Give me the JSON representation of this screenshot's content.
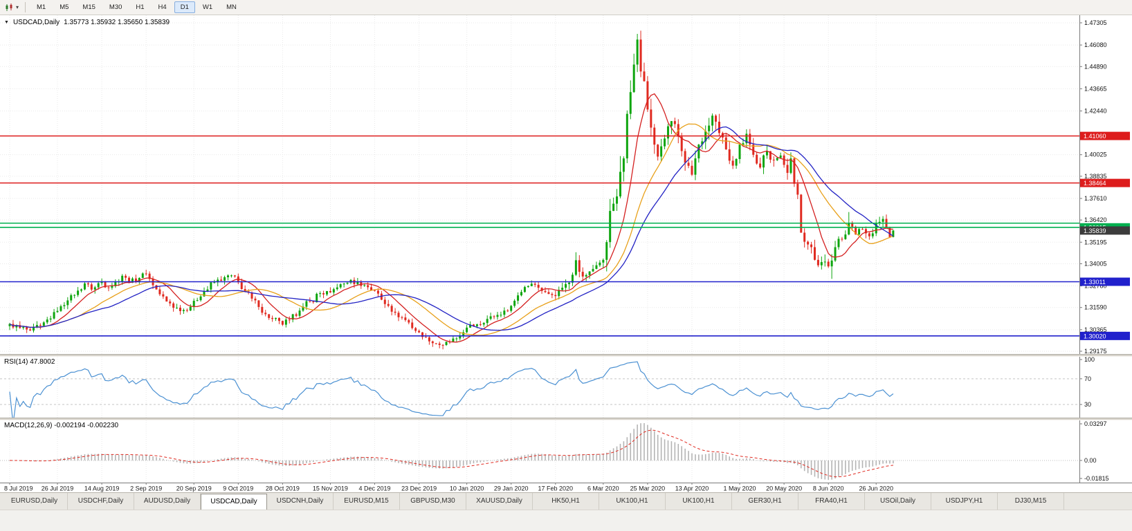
{
  "toolbar": {
    "dropdown_glyph": "▾",
    "timeframes": [
      {
        "label": "M1",
        "active": false
      },
      {
        "label": "M5",
        "active": false
      },
      {
        "label": "M15",
        "active": false
      },
      {
        "label": "M30",
        "active": false
      },
      {
        "label": "H1",
        "active": false
      },
      {
        "label": "H4",
        "active": false
      },
      {
        "label": "D1",
        "active": true
      },
      {
        "label": "W1",
        "active": false
      },
      {
        "label": "MN",
        "active": false
      }
    ]
  },
  "chart": {
    "title": "USDCAD,Daily",
    "ohlc": "1.35773 1.35932 1.35650 1.35839",
    "collapse_glyph": "▼"
  },
  "colors": {
    "candle_up": "#0ea50e",
    "candle_down": "#e02a20",
    "rsi_line": "#4a90d2",
    "macd_histogram": "#b4b4b4",
    "macd_signal": "#e02a20",
    "grid": "#e9e9e9",
    "axis_text": "#111111"
  },
  "chart_data": {
    "type": "candlestick",
    "symbol": "USDCAD",
    "period": "Daily",
    "y_range": [
      1.29175,
      1.47305
    ],
    "y_axis_labels": [
      "1.47305",
      "1.46080",
      "1.44890",
      "1.43665",
      "1.42440",
      "1.40025",
      "1.38835",
      "1.37610",
      "1.36420",
      "1.35195",
      "1.34005",
      "1.32780",
      "1.31590",
      "1.30365",
      "1.29175"
    ],
    "x_labels": [
      "8 Jul 2019",
      "26 Jul 2019",
      "14 Aug 2019",
      "2 Sep 2019",
      "20 Sep 2019",
      "9 Oct 2019",
      "28 Oct 2019",
      "15 Nov 2019",
      "4 Dec 2019",
      "23 Dec 2019",
      "10 Jan 2020",
      "29 Jan 2020",
      "17 Feb 2020",
      "6 Mar 2020",
      "25 Mar 2020",
      "13 Apr 2020",
      "1 May 2020",
      "20 May 2020",
      "8 Jun 2020",
      "26 Jun 2020"
    ],
    "x_label_indices": [
      0,
      14,
      27,
      40,
      54,
      67,
      80,
      94,
      107,
      120,
      134,
      147,
      160,
      174,
      187,
      200,
      214,
      227,
      240,
      254
    ],
    "candle_count": 260,
    "close_anchors": [
      [
        0,
        1.3068
      ],
      [
        3,
        1.3046
      ],
      [
        6,
        1.3032
      ],
      [
        9,
        1.3058
      ],
      [
        12,
        1.3098
      ],
      [
        14,
        1.314
      ],
      [
        17,
        1.3198
      ],
      [
        20,
        1.3252
      ],
      [
        22,
        1.3292
      ],
      [
        24,
        1.3258
      ],
      [
        27,
        1.3302
      ],
      [
        29,
        1.3268
      ],
      [
        31,
        1.33
      ],
      [
        33,
        1.3334
      ],
      [
        35,
        1.3296
      ],
      [
        38,
        1.3322
      ],
      [
        40,
        1.3346
      ],
      [
        42,
        1.3282
      ],
      [
        44,
        1.3232
      ],
      [
        46,
        1.3192
      ],
      [
        49,
        1.3158
      ],
      [
        52,
        1.3142
      ],
      [
        54,
        1.3196
      ],
      [
        57,
        1.3248
      ],
      [
        60,
        1.3298
      ],
      [
        63,
        1.3326
      ],
      [
        65,
        1.3336
      ],
      [
        67,
        1.3298
      ],
      [
        69,
        1.3248
      ],
      [
        71,
        1.3208
      ],
      [
        73,
        1.3162
      ],
      [
        75,
        1.3122
      ],
      [
        77,
        1.3096
      ],
      [
        80,
        1.3064
      ],
      [
        82,
        1.3092
      ],
      [
        85,
        1.3142
      ],
      [
        88,
        1.3192
      ],
      [
        91,
        1.3238
      ],
      [
        94,
        1.3242
      ],
      [
        96,
        1.327
      ],
      [
        99,
        1.3296
      ],
      [
        102,
        1.3302
      ],
      [
        104,
        1.3282
      ],
      [
        107,
        1.3252
      ],
      [
        109,
        1.3202
      ],
      [
        111,
        1.3168
      ],
      [
        113,
        1.313
      ],
      [
        115,
        1.3104
      ],
      [
        117,
        1.3076
      ],
      [
        119,
        1.303
      ],
      [
        121,
        1.2996
      ],
      [
        123,
        1.2972
      ],
      [
        125,
        1.296
      ],
      [
        127,
        1.2952
      ],
      [
        129,
        1.2968
      ],
      [
        131,
        1.2988
      ],
      [
        134,
        1.3048
      ],
      [
        137,
        1.3066
      ],
      [
        140,
        1.3096
      ],
      [
        143,
        1.3118
      ],
      [
        145,
        1.3142
      ],
      [
        147,
        1.3168
      ],
      [
        149,
        1.3226
      ],
      [
        151,
        1.3272
      ],
      [
        153,
        1.329
      ],
      [
        155,
        1.3268
      ],
      [
        157,
        1.3244
      ],
      [
        159,
        1.3228
      ],
      [
        160,
        1.3222
      ],
      [
        162,
        1.3268
      ],
      [
        164,
        1.3296
      ],
      [
        166,
        1.342
      ],
      [
        168,
        1.333
      ],
      [
        170,
        1.3358
      ],
      [
        172,
        1.3392
      ],
      [
        174,
        1.3422
      ],
      [
        175,
        1.352
      ],
      [
        176,
        1.3692
      ],
      [
        177,
        1.3732
      ],
      [
        178,
        1.3772
      ],
      [
        179,
        1.3908
      ],
      [
        180,
        1.3982
      ],
      [
        181,
        1.4228
      ],
      [
        182,
        1.4348
      ],
      [
        183,
        1.45
      ],
      [
        184,
        1.4638
      ],
      [
        185,
        1.4462
      ],
      [
        186,
        1.4408
      ],
      [
        187,
        1.4252
      ],
      [
        188,
        1.4152
      ],
      [
        189,
        1.4058
      ],
      [
        190,
        1.3992
      ],
      [
        192,
        1.4092
      ],
      [
        194,
        1.4188
      ],
      [
        196,
        1.4102
      ],
      [
        198,
        1.3958
      ],
      [
        200,
        1.3892
      ],
      [
        202,
        1.4058
      ],
      [
        204,
        1.4132
      ],
      [
        206,
        1.4218
      ],
      [
        208,
        1.4122
      ],
      [
        210,
        1.4032
      ],
      [
        212,
        1.3942
      ],
      [
        214,
        1.4058
      ],
      [
        216,
        1.4118
      ],
      [
        218,
        1.4002
      ],
      [
        220,
        1.3932
      ],
      [
        222,
        1.4022
      ],
      [
        224,
        1.3972
      ],
      [
        226,
        1.3998
      ],
      [
        228,
        1.3902
      ],
      [
        229,
        1.3982
      ],
      [
        230,
        1.3842
      ],
      [
        231,
        1.3782
      ],
      [
        232,
        1.3572
      ],
      [
        233,
        1.3522
      ],
      [
        235,
        1.3492
      ],
      [
        236,
        1.3422
      ],
      [
        237,
        1.3392
      ],
      [
        239,
        1.3412
      ],
      [
        240,
        1.3386
      ],
      [
        241,
        1.3418
      ],
      [
        242,
        1.3492
      ],
      [
        243,
        1.3538
      ],
      [
        245,
        1.3562
      ],
      [
        246,
        1.3622
      ],
      [
        248,
        1.3562
      ],
      [
        250,
        1.3592
      ],
      [
        252,
        1.3552
      ],
      [
        254,
        1.3622
      ],
      [
        256,
        1.3648
      ],
      [
        257,
        1.3598
      ],
      [
        258,
        1.3548
      ],
      [
        259,
        1.35839
      ]
    ],
    "volatility_segments": [
      [
        0,
        0.0042
      ],
      [
        120,
        0.0038
      ],
      [
        160,
        0.006
      ],
      [
        174,
        0.012
      ],
      [
        190,
        0.0085
      ],
      [
        214,
        0.007
      ],
      [
        231,
        0.0075
      ],
      [
        243,
        0.0055
      ]
    ],
    "wick_overrides": [
      [
        127,
        "low",
        1.2928
      ],
      [
        166,
        "high",
        1.3464
      ],
      [
        176,
        "high",
        1.3758
      ],
      [
        179,
        "high",
        1.3995
      ],
      [
        183,
        "high",
        1.456
      ],
      [
        184,
        "high",
        1.46695
      ],
      [
        241,
        "low",
        1.3317
      ],
      [
        246,
        "high",
        1.3686
      ]
    ],
    "hlines": [
      {
        "price": 1.4106,
        "label": "1.41060",
        "color": "#dd1c1c"
      },
      {
        "price": 1.38464,
        "label": "1.38464",
        "color": "#dd1c1c"
      },
      {
        "price": 1.36246,
        "label": "",
        "color": "#00b050"
      },
      {
        "price": 1.36015,
        "label": "1.36015",
        "color": "#00b050"
      },
      {
        "price": 1.33011,
        "label": "1.33011",
        "color": "#2121cc"
      },
      {
        "price": 1.3002,
        "label": "1.30020",
        "color": "#2121cc"
      }
    ],
    "current_price": {
      "value": 1.35839,
      "label": "1.35839"
    },
    "moving_averages": [
      {
        "period": 9,
        "color": "#d42020"
      },
      {
        "period": 21,
        "color": "#e8a019"
      },
      {
        "period": 30,
        "color": "#2222c4"
      }
    ],
    "rsi": {
      "label": "RSI(14) 47.8002",
      "period": 14,
      "current": 47.8002,
      "levels": [
        100,
        70,
        30
      ],
      "level_labels": [
        "100",
        "70",
        "30"
      ]
    },
    "macd": {
      "label": "MACD(12,26,9) -0.002194 -0.002230",
      "fast": 12,
      "slow": 26,
      "signal_period": 9,
      "macd_current": -0.002194,
      "signal_current": -0.00223,
      "axis_labels": [
        "0.03297",
        "0.00",
        "-0.01815"
      ]
    }
  },
  "tabs": [
    {
      "label": "EURUSD,Daily",
      "active": false
    },
    {
      "label": "USDCHF,Daily",
      "active": false
    },
    {
      "label": "AUDUSD,Daily",
      "active": false
    },
    {
      "label": "USDCAD,Daily",
      "active": true
    },
    {
      "label": "USDCNH,Daily",
      "active": false
    },
    {
      "label": "EURUSD,M15",
      "active": false
    },
    {
      "label": "GBPUSD,M30",
      "active": false
    },
    {
      "label": "XAUUSD,Daily",
      "active": false
    },
    {
      "label": "HK50,H1",
      "active": false
    },
    {
      "label": "UK100,H1",
      "active": false
    },
    {
      "label": "UK100,H1",
      "active": false
    },
    {
      "label": "GER30,H1",
      "active": false
    },
    {
      "label": "FRA40,H1",
      "active": false
    },
    {
      "label": "USOil,Daily",
      "active": false
    },
    {
      "label": "USDJPY,H1",
      "active": false
    },
    {
      "label": "DJ30,M15",
      "active": false
    }
  ]
}
